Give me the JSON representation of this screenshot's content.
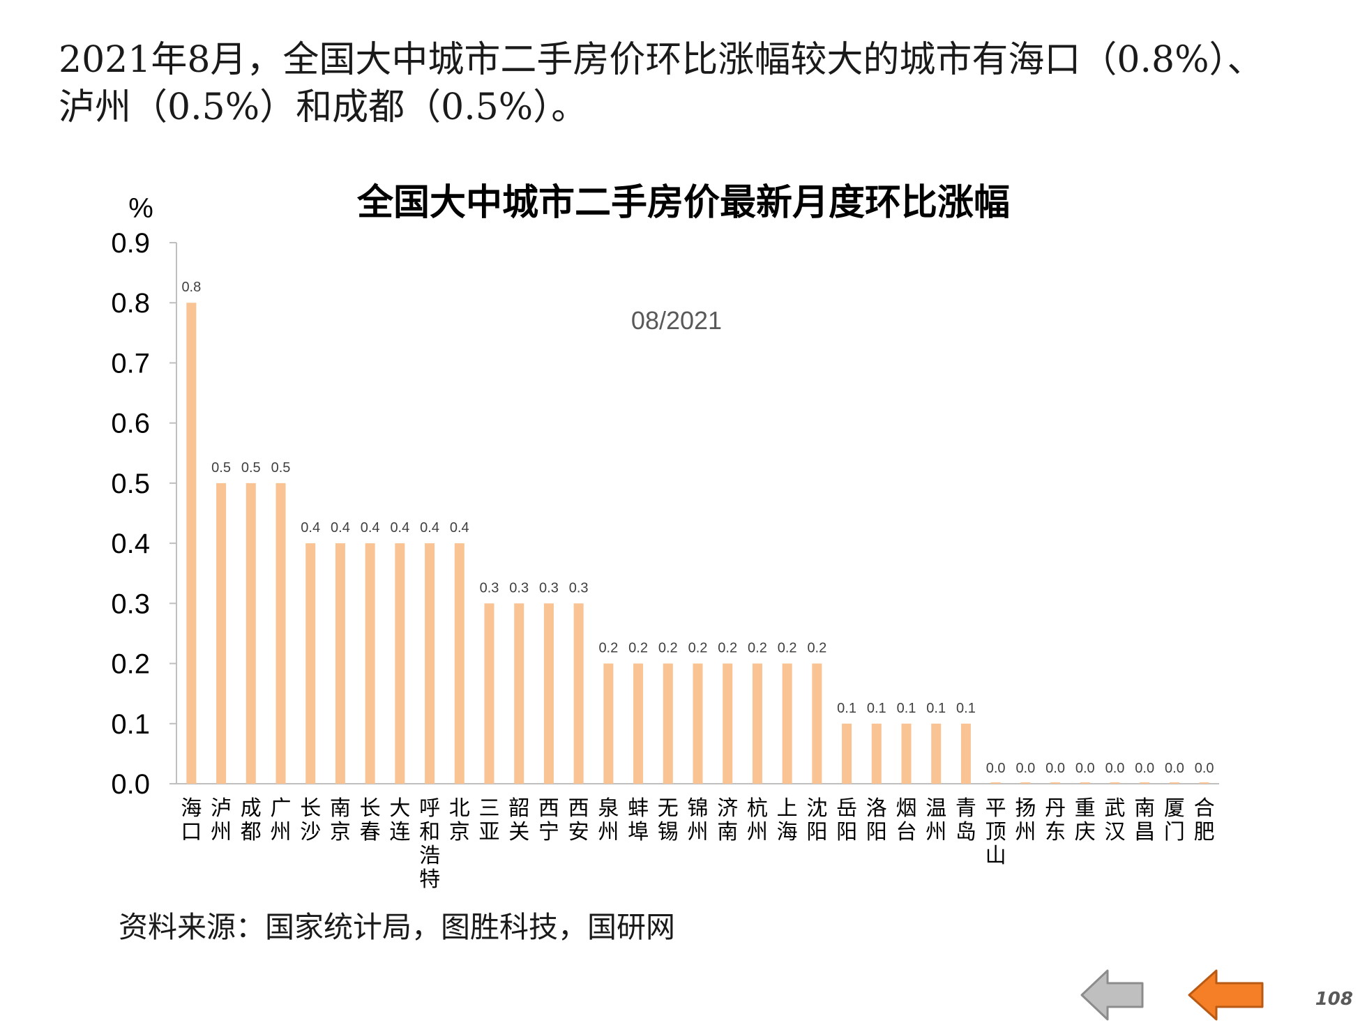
{
  "headline": {
    "line1": "2021年8月，全国大中城市二手房价环比涨幅较大的城市有海口（0.8%）、",
    "line2": "泸州（0.5%）和成都（0.5%）。"
  },
  "chart_data": {
    "type": "bar",
    "title": "全国大中城市二手房价最新月度环比涨幅",
    "subtitle": "08/2021",
    "ylabel": "%",
    "xlabel": "",
    "ylim": [
      0,
      0.9
    ],
    "yticks": [
      "0.0",
      "0.1",
      "0.2",
      "0.3",
      "0.4",
      "0.5",
      "0.6",
      "0.7",
      "0.8",
      "0.9"
    ],
    "bar_color": "#F9C394",
    "grid": false,
    "legend": "none",
    "categories": [
      "海口",
      "泸州",
      "成都",
      "广州",
      "长沙",
      "南京",
      "长春",
      "大连",
      "呼和浩特",
      "北京",
      "三亚",
      "韶关",
      "西宁",
      "西安",
      "泉州",
      "蚌埠",
      "无锡",
      "锦州",
      "济南",
      "杭州",
      "上海",
      "沈阳",
      "岳阳",
      "洛阳",
      "烟台",
      "温州",
      "青岛",
      "平顶山",
      "扬州",
      "丹东",
      "重庆",
      "武汉",
      "南昌",
      "厦门",
      "合肥"
    ],
    "values": [
      0.8,
      0.5,
      0.5,
      0.5,
      0.4,
      0.4,
      0.4,
      0.4,
      0.4,
      0.4,
      0.3,
      0.3,
      0.3,
      0.3,
      0.2,
      0.2,
      0.2,
      0.2,
      0.2,
      0.2,
      0.2,
      0.2,
      0.1,
      0.1,
      0.1,
      0.1,
      0.1,
      0.0,
      0.0,
      0.0,
      0.0,
      0.0,
      0.0,
      0.0,
      0.0
    ],
    "data_labels": [
      "0.8",
      "0.5",
      "0.5",
      "0.5",
      "0.4",
      "0.4",
      "0.4",
      "0.4",
      "0.4",
      "0.4",
      "0.3",
      "0.3",
      "0.3",
      "0.3",
      "0.2",
      "0.2",
      "0.2",
      "0.2",
      "0.2",
      "0.2",
      "0.2",
      "0.2",
      "0.1",
      "0.1",
      "0.1",
      "0.1",
      "0.1",
      "0.0",
      "0.0",
      "0.0",
      "0.0",
      "0.0",
      "0.0",
      "0.0",
      "0.0"
    ]
  },
  "source": "资料来源：国家统计局，图胜科技，国研网",
  "navigation": {
    "prev_color": "#BFBFBF",
    "next_color": "#F57F26"
  },
  "page_number": "108"
}
